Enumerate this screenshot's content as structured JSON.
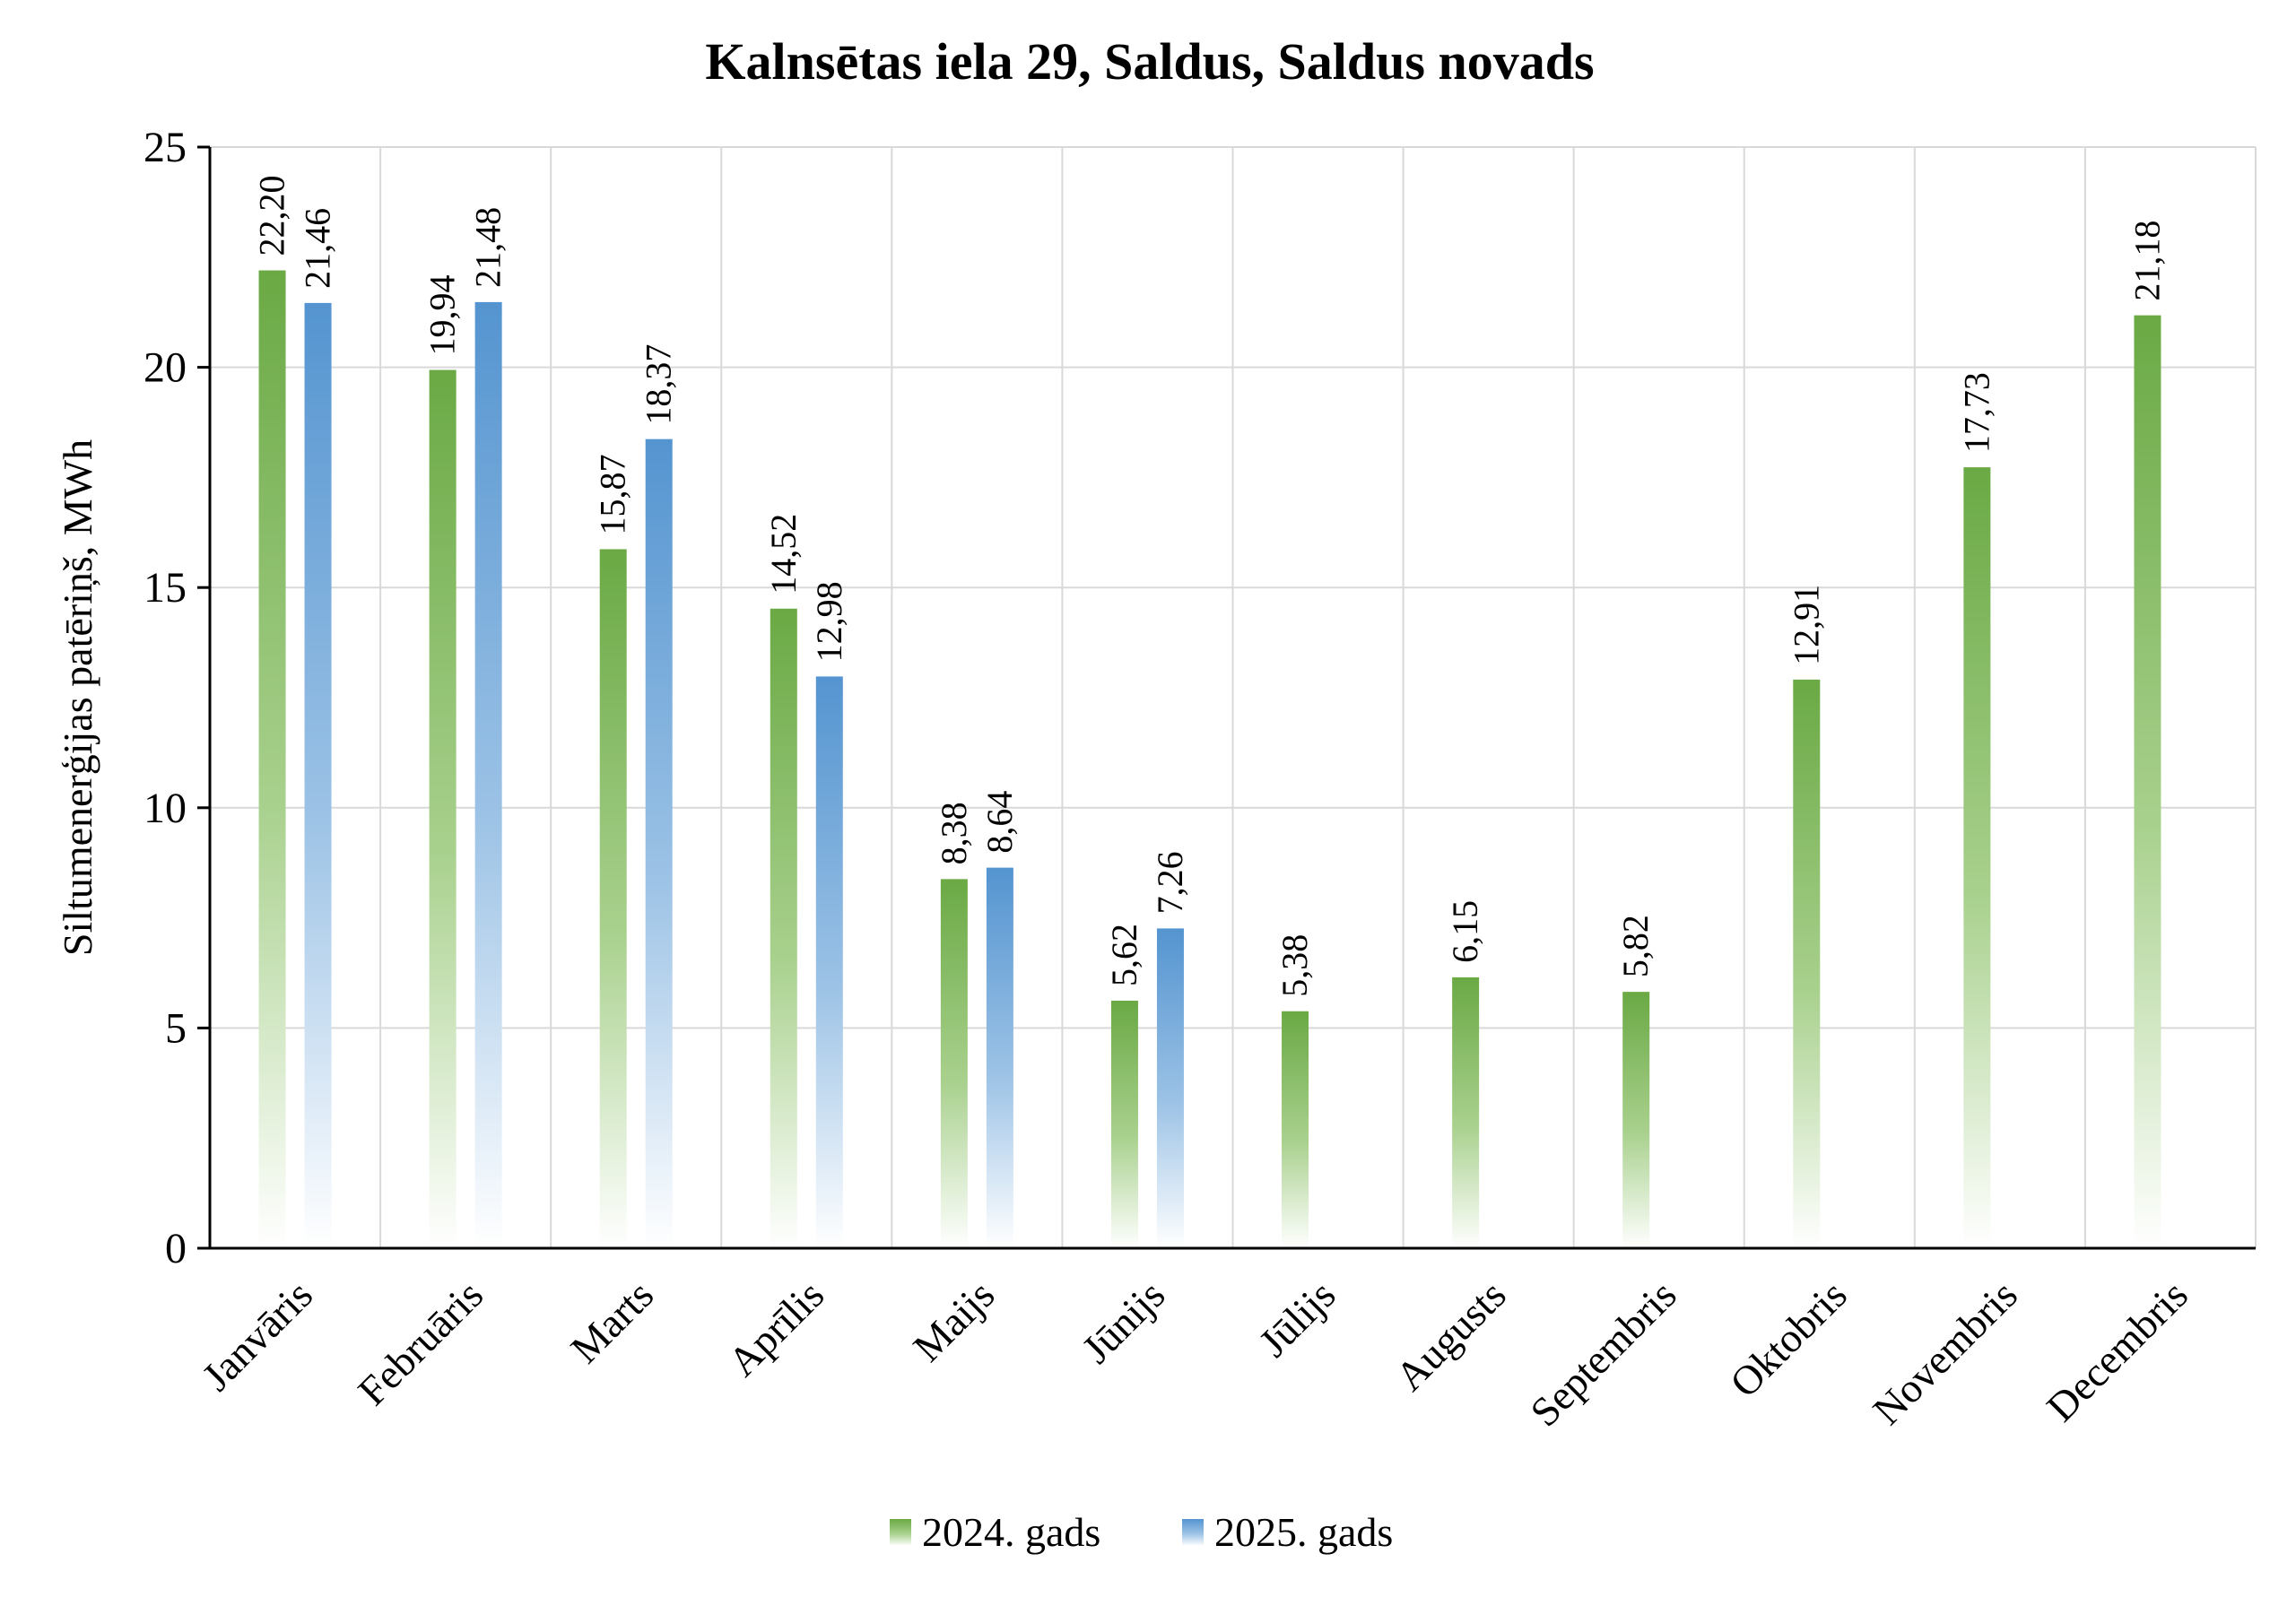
{
  "chart_data": {
    "type": "bar",
    "title": "Kalnsētas iela 29, Saldus, Saldus novads",
    "ylabel": "Siltumenerģijas patēriņš, MWh",
    "xlabel": "",
    "ylim": [
      0,
      25
    ],
    "yticks": [
      0,
      5,
      10,
      15,
      20,
      25
    ],
    "grid": true,
    "legend_position": "bottom",
    "categories": [
      "Janvāris",
      "Februāris",
      "Marts",
      "Aprīlis",
      "Maijs",
      "Jūnijs",
      "Jūlijs",
      "Augusts",
      "Septembris",
      "Oktobris",
      "Novembris",
      "Decembris"
    ],
    "series": [
      {
        "name": "2024. gads",
        "color": "#70ad47",
        "values": [
          22.2,
          19.94,
          15.87,
          14.52,
          8.38,
          5.62,
          5.38,
          6.15,
          5.82,
          12.91,
          17.73,
          21.18
        ],
        "labels": [
          "22,20",
          "19,94",
          "15,87",
          "14,52",
          "8,38",
          "5,62",
          "5,38",
          "6,15",
          "5,82",
          "12,91",
          "17,73",
          "21,18"
        ]
      },
      {
        "name": "2025. gads",
        "color": "#5b9bd5",
        "values": [
          21.46,
          21.48,
          18.37,
          12.98,
          8.64,
          7.26,
          null,
          null,
          null,
          null,
          null,
          null
        ],
        "labels": [
          "21,46",
          "21,48",
          "18,37",
          "12,98",
          "8,64",
          "7,26",
          null,
          null,
          null,
          null,
          null,
          null
        ]
      }
    ]
  }
}
